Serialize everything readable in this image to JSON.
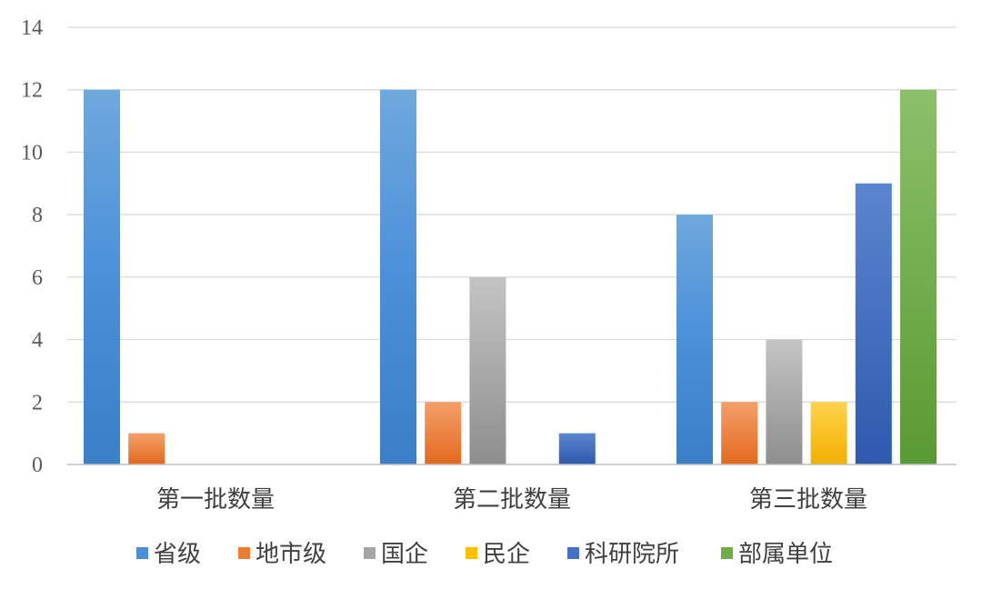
{
  "chart_data": {
    "type": "bar",
    "categories": [
      "第一批数量",
      "第二批数量",
      "第三批数量"
    ],
    "series": [
      {
        "name": "省级",
        "values": [
          12,
          12,
          8
        ],
        "color": "#4A90D9"
      },
      {
        "name": "地市级",
        "values": [
          1,
          2,
          2
        ],
        "color": "#ED7D31"
      },
      {
        "name": "国企",
        "values": [
          0,
          6,
          4
        ],
        "color": "#A5A5A5"
      },
      {
        "name": "民企",
        "values": [
          0,
          0,
          2
        ],
        "color": "#FFC000"
      },
      {
        "name": "科研院所",
        "values": [
          0,
          1,
          9
        ],
        "color": "#4472C4"
      },
      {
        "name": "部属单位",
        "values": [
          0,
          0,
          12
        ],
        "color": "#70AD47"
      }
    ],
    "yticks": [
      "0",
      "2",
      "4",
      "6",
      "8",
      "10",
      "12",
      "14"
    ],
    "ylim": [
      0,
      14
    ],
    "grid": true,
    "legend": "bottom"
  }
}
